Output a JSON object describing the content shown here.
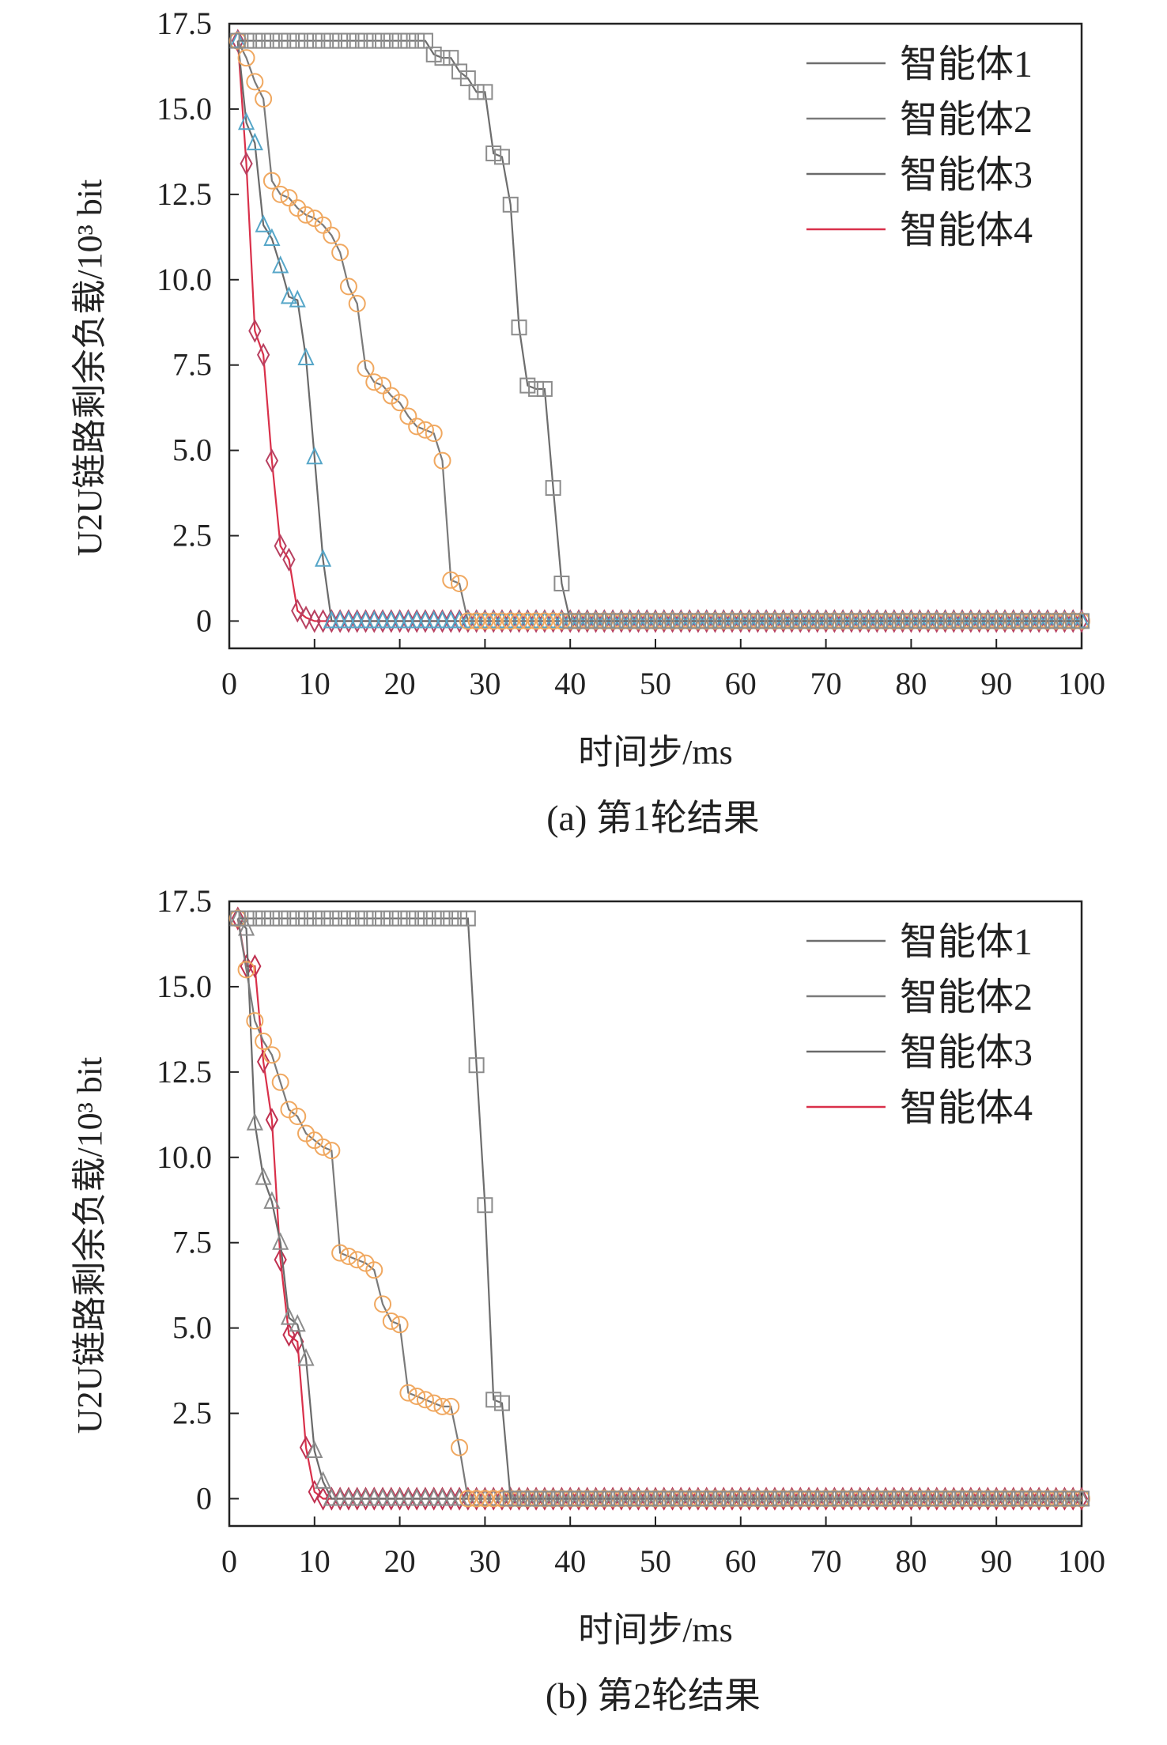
{
  "chart_data": [
    {
      "type": "line",
      "caption": "(a) 第1轮结果",
      "xlabel": "时间步/ms",
      "ylabel": "U2U链路剩余负载/10³ bit",
      "xlim": [
        0,
        100
      ],
      "ylim": [
        -0.8,
        17.5
      ],
      "xticks": [
        "0",
        "10",
        "20",
        "30",
        "40",
        "50",
        "60",
        "70",
        "80",
        "90",
        "100"
      ],
      "yticks": [
        "0",
        "2.5",
        "5.0",
        "7.5",
        "10.0",
        "12.5",
        "15.0",
        "17.5"
      ],
      "legend_position": "top-right",
      "series": [
        {
          "name": "智能体1",
          "line_color": "#6d6d6d",
          "marker": "square",
          "marker_color": "#8c8c8c",
          "x": [
            1,
            2,
            3,
            4,
            5,
            6,
            7,
            8,
            9,
            10,
            11,
            12,
            13,
            14,
            15,
            16,
            17,
            18,
            19,
            20,
            21,
            22,
            23,
            24,
            25,
            26,
            27,
            28,
            29,
            30,
            31,
            32,
            33,
            34,
            35,
            36,
            37,
            38,
            39,
            40
          ],
          "y": [
            17,
            17,
            17,
            17,
            17,
            17,
            17,
            17,
            17,
            17,
            17,
            17,
            17,
            17,
            17,
            17,
            17,
            17,
            17,
            17,
            17,
            17,
            17,
            16.6,
            16.5,
            16.5,
            16.1,
            15.9,
            15.5,
            15.5,
            13.7,
            13.6,
            12.2,
            8.6,
            6.9,
            6.8,
            6.8,
            3.9,
            1.1,
            0
          ]
        },
        {
          "name": "智能体2",
          "line_color": "#7a7a7a",
          "marker": "circle",
          "marker_color": "#f0a860",
          "x": [
            1,
            2,
            3,
            4,
            5,
            6,
            7,
            8,
            9,
            10,
            11,
            12,
            13,
            14,
            15,
            16,
            17,
            18,
            19,
            20,
            21,
            22,
            23,
            24,
            25,
            26,
            27,
            28
          ],
          "y": [
            17,
            16.5,
            15.8,
            15.3,
            12.9,
            12.5,
            12.4,
            12.1,
            11.9,
            11.8,
            11.6,
            11.3,
            10.8,
            9.8,
            9.3,
            7.4,
            7,
            6.9,
            6.6,
            6.4,
            6,
            5.7,
            5.6,
            5.5,
            4.7,
            1.2,
            1.1,
            0
          ]
        },
        {
          "name": "智能体3",
          "line_color": "#6a6a6a",
          "marker": "triangle",
          "marker_color": "#56a6c8",
          "x": [
            1,
            2,
            3,
            4,
            5,
            6,
            7,
            8,
            9,
            10,
            11,
            12
          ],
          "y": [
            17,
            14.6,
            14,
            11.6,
            11.2,
            10.4,
            9.5,
            9.4,
            7.7,
            4.8,
            1.8,
            0
          ]
        },
        {
          "name": "智能体4",
          "line_color": "#d9304a",
          "marker": "diamond",
          "marker_color": "#b84060",
          "x": [
            1,
            2,
            3,
            4,
            5,
            6,
            7,
            8,
            9,
            10
          ],
          "y": [
            17,
            13.4,
            8.5,
            7.8,
            4.7,
            2.2,
            1.8,
            0.3,
            0.1,
            0
          ]
        }
      ]
    },
    {
      "type": "line",
      "caption": "(b) 第2轮结果",
      "xlabel": "时间步/ms",
      "ylabel": "U2U链路剩余负载/10³ bit",
      "xlim": [
        0,
        100
      ],
      "ylim": [
        -0.8,
        17.5
      ],
      "xticks": [
        "0",
        "10",
        "20",
        "30",
        "40",
        "50",
        "60",
        "70",
        "80",
        "90",
        "100"
      ],
      "yticks": [
        "0",
        "2.5",
        "5.0",
        "7.5",
        "10.0",
        "12.5",
        "15.0",
        "17.5"
      ],
      "legend_position": "top-right",
      "series": [
        {
          "name": "智能体1",
          "line_color": "#6d6d6d",
          "marker": "square",
          "marker_color": "#8c8c8c",
          "x": [
            1,
            2,
            3,
            4,
            5,
            6,
            7,
            8,
            9,
            10,
            11,
            12,
            13,
            14,
            15,
            16,
            17,
            18,
            19,
            20,
            21,
            22,
            23,
            24,
            25,
            26,
            27,
            28,
            29,
            30,
            31,
            32,
            33
          ],
          "y": [
            17,
            17,
            17,
            17,
            17,
            17,
            17,
            17,
            17,
            17,
            17,
            17,
            17,
            17,
            17,
            17,
            17,
            17,
            17,
            17,
            17,
            17,
            17,
            17,
            17,
            17,
            17,
            17,
            12.7,
            8.6,
            2.9,
            2.8,
            0
          ]
        },
        {
          "name": "智能体2",
          "line_color": "#7a7a7a",
          "marker": "circle",
          "marker_color": "#f0a860",
          "x": [
            1,
            2,
            3,
            4,
            5,
            6,
            7,
            8,
            9,
            10,
            11,
            12,
            13,
            14,
            15,
            16,
            17,
            18,
            19,
            20,
            21,
            22,
            23,
            24,
            25,
            26,
            27,
            28
          ],
          "y": [
            17,
            15.5,
            14,
            13.4,
            13,
            12.2,
            11.4,
            11.2,
            10.7,
            10.5,
            10.3,
            10.2,
            7.2,
            7.1,
            7,
            6.9,
            6.7,
            5.7,
            5.2,
            5.1,
            3.1,
            3,
            2.9,
            2.8,
            2.7,
            2.7,
            1.5,
            0
          ]
        },
        {
          "name": "智能体3",
          "line_color": "#6a6a6a",
          "marker": "triangle",
          "marker_color": "#8c8c8c",
          "x": [
            1,
            2,
            3,
            4,
            5,
            6,
            7,
            8,
            9,
            10,
            11,
            12
          ],
          "y": [
            17,
            16.7,
            11,
            9.4,
            8.7,
            7.5,
            5.3,
            5.1,
            4.1,
            1.4,
            0.5,
            0
          ]
        },
        {
          "name": "智能体4",
          "line_color": "#d9304a",
          "marker": "diamond",
          "marker_color": "#c03050",
          "x": [
            1,
            2,
            3,
            4,
            5,
            6,
            7,
            8,
            9,
            10,
            11
          ],
          "y": [
            17,
            15.6,
            15.6,
            12.8,
            11.1,
            7,
            4.8,
            4.6,
            1.5,
            0.2,
            0
          ]
        }
      ]
    }
  ]
}
